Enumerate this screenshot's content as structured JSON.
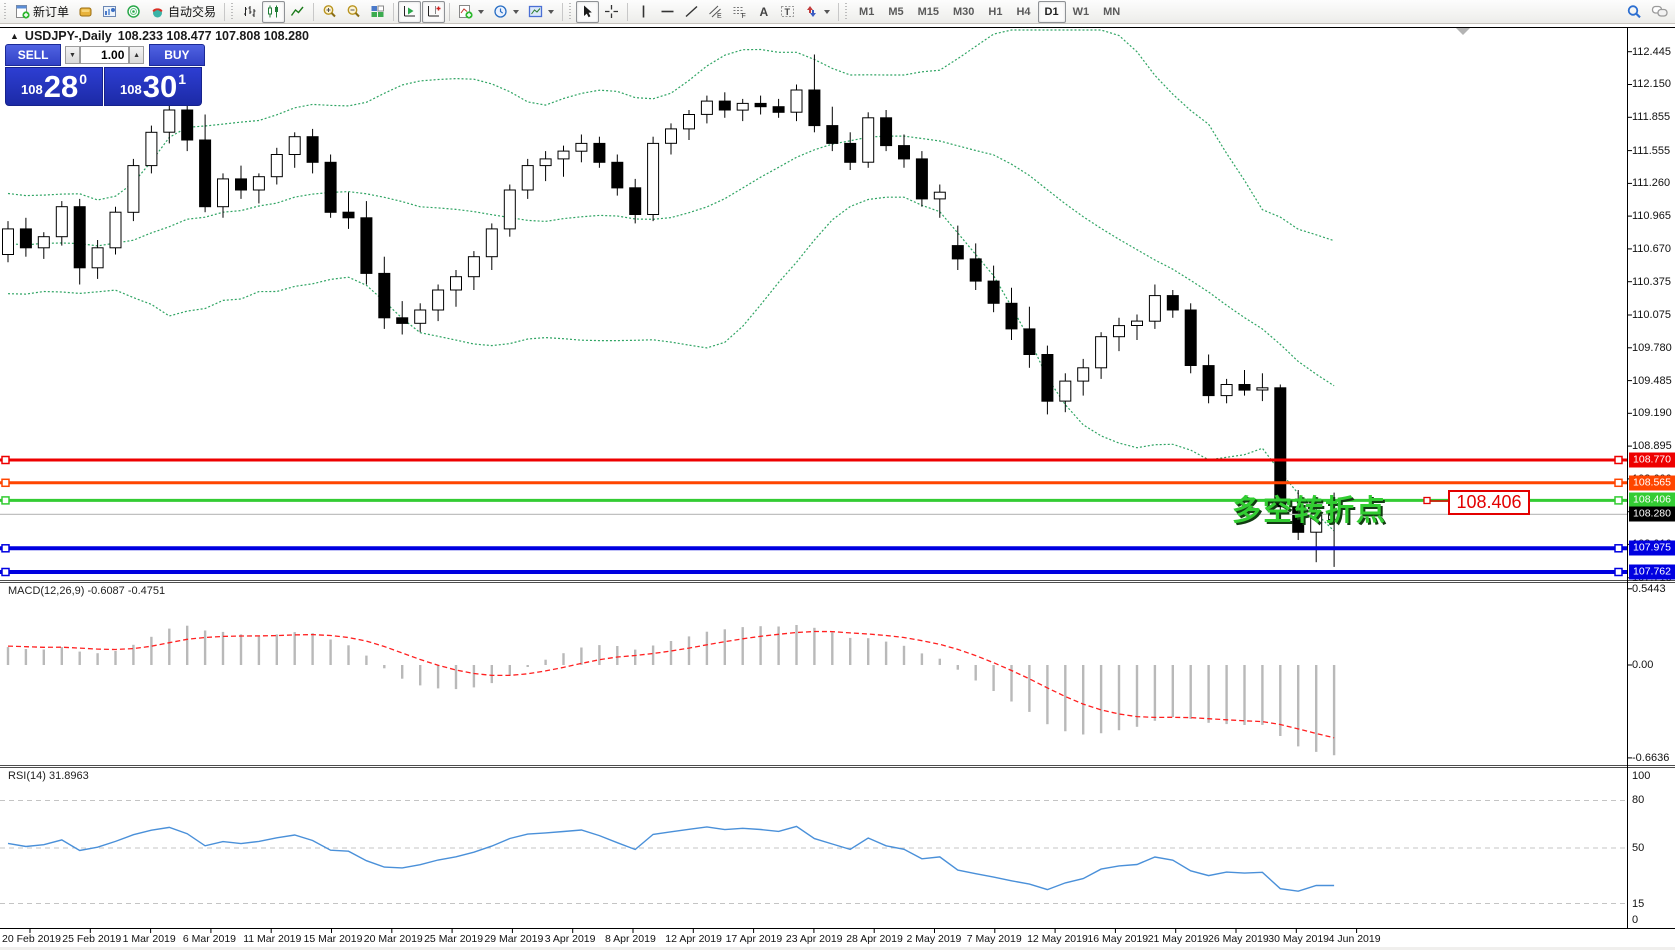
{
  "toolbar": {
    "new_order": "新订单",
    "auto_trading": "自动交易",
    "channel_letter": "E",
    "fibonacci_letter": "F",
    "text_letter": "A",
    "label_letter": "T",
    "timeframes": [
      "M1",
      "M5",
      "M15",
      "M30",
      "H1",
      "H4",
      "D1",
      "W1",
      "MN"
    ],
    "active_timeframe": "D1"
  },
  "chart": {
    "title": {
      "collapse": "▲",
      "symbol": "USDJPY-,Daily",
      "ohlc": "108.233 108.477 107.808 108.280"
    },
    "one_click": {
      "sell": "SELL",
      "buy": "BUY",
      "volume": "1.00",
      "sell_price": {
        "small": "108",
        "big": "28",
        "sup": "0"
      },
      "buy_price": {
        "small": "108",
        "big": "30",
        "sup": "1"
      }
    },
    "annotation": "多空转折点",
    "callout": "108.406",
    "shift_marker": "▼"
  },
  "axis": {
    "price_labels": [
      "112.445",
      "112.150",
      "111.855",
      "111.555",
      "111.260",
      "110.965",
      "110.670",
      "110.375",
      "110.075",
      "109.780",
      "109.485",
      "109.190",
      "108.895",
      "108.600",
      "108.305",
      "108.010",
      "107.710"
    ],
    "hlines": [
      {
        "label": "108.770",
        "price": 108.77,
        "color": "#ee0000",
        "width": 3
      },
      {
        "label": "108.565",
        "price": 108.565,
        "color": "#ff4500",
        "width": 3
      },
      {
        "label": "108.406",
        "price": 108.406,
        "color": "#33cc33",
        "width": 3
      },
      {
        "label": "107.975",
        "price": 107.975,
        "color": "#0000e0",
        "width": 4
      },
      {
        "label": "107.762",
        "price": 107.762,
        "color": "#0000e0",
        "width": 4
      }
    ],
    "current": {
      "label": "108.280",
      "price": 108.28,
      "line_color": "#c0c0c0",
      "label_bg": "#000000"
    }
  },
  "macd": {
    "label": "MACD(12,26,9)",
    "values": "-0.6087 -0.4751",
    "axis": [
      "0.5443",
      "0.00",
      "-0.6636"
    ]
  },
  "rsi": {
    "label": "RSI(14)",
    "value": "31.8963",
    "axis": [
      "100",
      "80",
      "50",
      "15",
      "0"
    ],
    "levels": [
      80,
      50,
      15
    ]
  },
  "dates": [
    "20 Feb 2019",
    "25 Feb 2019",
    "1 Mar 2019",
    "6 Mar 2019",
    "11 Mar 2019",
    "15 Mar 2019",
    "20 Mar 2019",
    "25 Mar 2019",
    "29 Mar 2019",
    "3 Apr 2019",
    "8 Apr 2019",
    "12 Apr 2019",
    "17 Apr 2019",
    "23 Apr 2019",
    "28 Apr 2019",
    "2 May 2019",
    "7 May 2019",
    "12 May 2019",
    "16 May 2019",
    "21 May 2019",
    "26 May 2019",
    "30 May 2019",
    "4 Jun 2019"
  ],
  "chart_data": {
    "type": "candlestick",
    "symbol": "USDJPY",
    "period": "Daily",
    "indicators": {
      "bollinger": "Bands(20,2)",
      "macd": "MACD(12,26,9)",
      "rsi": "RSI(14)"
    },
    "ohlc": [
      [
        110.62,
        110.92,
        110.55,
        110.85
      ],
      [
        110.85,
        110.95,
        110.6,
        110.68
      ],
      [
        110.68,
        110.82,
        110.58,
        110.78
      ],
      [
        110.78,
        111.1,
        110.7,
        111.05
      ],
      [
        111.05,
        111.12,
        110.35,
        110.5
      ],
      [
        110.5,
        110.75,
        110.4,
        110.68
      ],
      [
        110.68,
        111.05,
        110.62,
        111.0
      ],
      [
        111.0,
        111.48,
        110.92,
        111.42
      ],
      [
        111.42,
        111.78,
        111.35,
        111.72
      ],
      [
        111.72,
        112.0,
        111.62,
        111.92
      ],
      [
        111.92,
        111.98,
        111.55,
        111.65
      ],
      [
        111.65,
        111.88,
        111.0,
        111.05
      ],
      [
        111.05,
        111.35,
        110.95,
        111.3
      ],
      [
        111.3,
        111.42,
        111.12,
        111.2
      ],
      [
        111.2,
        111.35,
        111.08,
        111.32
      ],
      [
        111.32,
        111.58,
        111.25,
        111.52
      ],
      [
        111.52,
        111.72,
        111.4,
        111.68
      ],
      [
        111.68,
        111.75,
        111.35,
        111.45
      ],
      [
        111.45,
        111.52,
        110.95,
        111.0
      ],
      [
        111.0,
        111.18,
        110.85,
        110.95
      ],
      [
        110.95,
        111.1,
        110.35,
        110.45
      ],
      [
        110.45,
        110.6,
        109.95,
        110.05
      ],
      [
        110.05,
        110.2,
        109.9,
        110.0
      ],
      [
        110.0,
        110.18,
        109.92,
        110.12
      ],
      [
        110.12,
        110.35,
        110.02,
        110.3
      ],
      [
        110.3,
        110.48,
        110.15,
        110.42
      ],
      [
        110.42,
        110.65,
        110.3,
        110.6
      ],
      [
        110.6,
        110.9,
        110.48,
        110.85
      ],
      [
        110.85,
        111.25,
        110.78,
        111.2
      ],
      [
        111.2,
        111.48,
        111.12,
        111.42
      ],
      [
        111.42,
        111.55,
        111.28,
        111.48
      ],
      [
        111.48,
        111.6,
        111.32,
        111.55
      ],
      [
        111.55,
        111.7,
        111.45,
        111.62
      ],
      [
        111.62,
        111.68,
        111.4,
        111.45
      ],
      [
        111.45,
        111.52,
        111.15,
        111.22
      ],
      [
        111.22,
        111.3,
        110.9,
        110.98
      ],
      [
        110.98,
        111.68,
        110.92,
        111.62
      ],
      [
        111.62,
        111.8,
        111.52,
        111.75
      ],
      [
        111.75,
        111.92,
        111.65,
        111.88
      ],
      [
        111.88,
        112.05,
        111.8,
        112.0
      ],
      [
        112.0,
        112.08,
        111.85,
        111.92
      ],
      [
        111.92,
        112.02,
        111.82,
        111.98
      ],
      [
        111.98,
        112.05,
        111.88,
        111.95
      ],
      [
        111.95,
        112.02,
        111.85,
        111.9
      ],
      [
        111.9,
        112.15,
        111.82,
        112.1
      ],
      [
        112.1,
        112.42,
        111.72,
        111.78
      ],
      [
        111.78,
        111.95,
        111.55,
        111.62
      ],
      [
        111.62,
        111.72,
        111.38,
        111.45
      ],
      [
        111.45,
        111.9,
        111.4,
        111.85
      ],
      [
        111.85,
        111.92,
        111.55,
        111.6
      ],
      [
        111.6,
        111.7,
        111.4,
        111.48
      ],
      [
        111.48,
        111.55,
        111.05,
        111.12
      ],
      [
        111.12,
        111.25,
        110.95,
        111.18
      ],
      [
        110.7,
        110.88,
        110.48,
        110.58
      ],
      [
        110.58,
        110.72,
        110.3,
        110.38
      ],
      [
        110.38,
        110.52,
        110.1,
        110.18
      ],
      [
        110.18,
        110.32,
        109.85,
        109.95
      ],
      [
        109.95,
        110.15,
        109.6,
        109.72
      ],
      [
        109.72,
        109.8,
        109.18,
        109.3
      ],
      [
        109.3,
        109.55,
        109.2,
        109.48
      ],
      [
        109.48,
        109.68,
        109.35,
        109.6
      ],
      [
        109.6,
        109.92,
        109.5,
        109.88
      ],
      [
        109.88,
        110.05,
        109.75,
        109.98
      ],
      [
        109.98,
        110.08,
        109.85,
        110.02
      ],
      [
        110.02,
        110.35,
        109.95,
        110.25
      ],
      [
        110.25,
        110.3,
        110.05,
        110.12
      ],
      [
        110.12,
        110.18,
        109.55,
        109.62
      ],
      [
        109.62,
        109.72,
        109.28,
        109.35
      ],
      [
        109.35,
        109.5,
        109.28,
        109.45
      ],
      [
        109.45,
        109.58,
        109.35,
        109.4
      ],
      [
        109.4,
        109.55,
        109.3,
        109.42
      ],
      [
        109.42,
        109.45,
        108.25,
        108.35
      ],
      [
        108.35,
        108.5,
        108.05,
        108.12
      ],
      [
        108.12,
        108.35,
        107.85,
        108.28
      ],
      [
        108.233,
        108.477,
        107.808,
        108.28
      ]
    ]
  }
}
